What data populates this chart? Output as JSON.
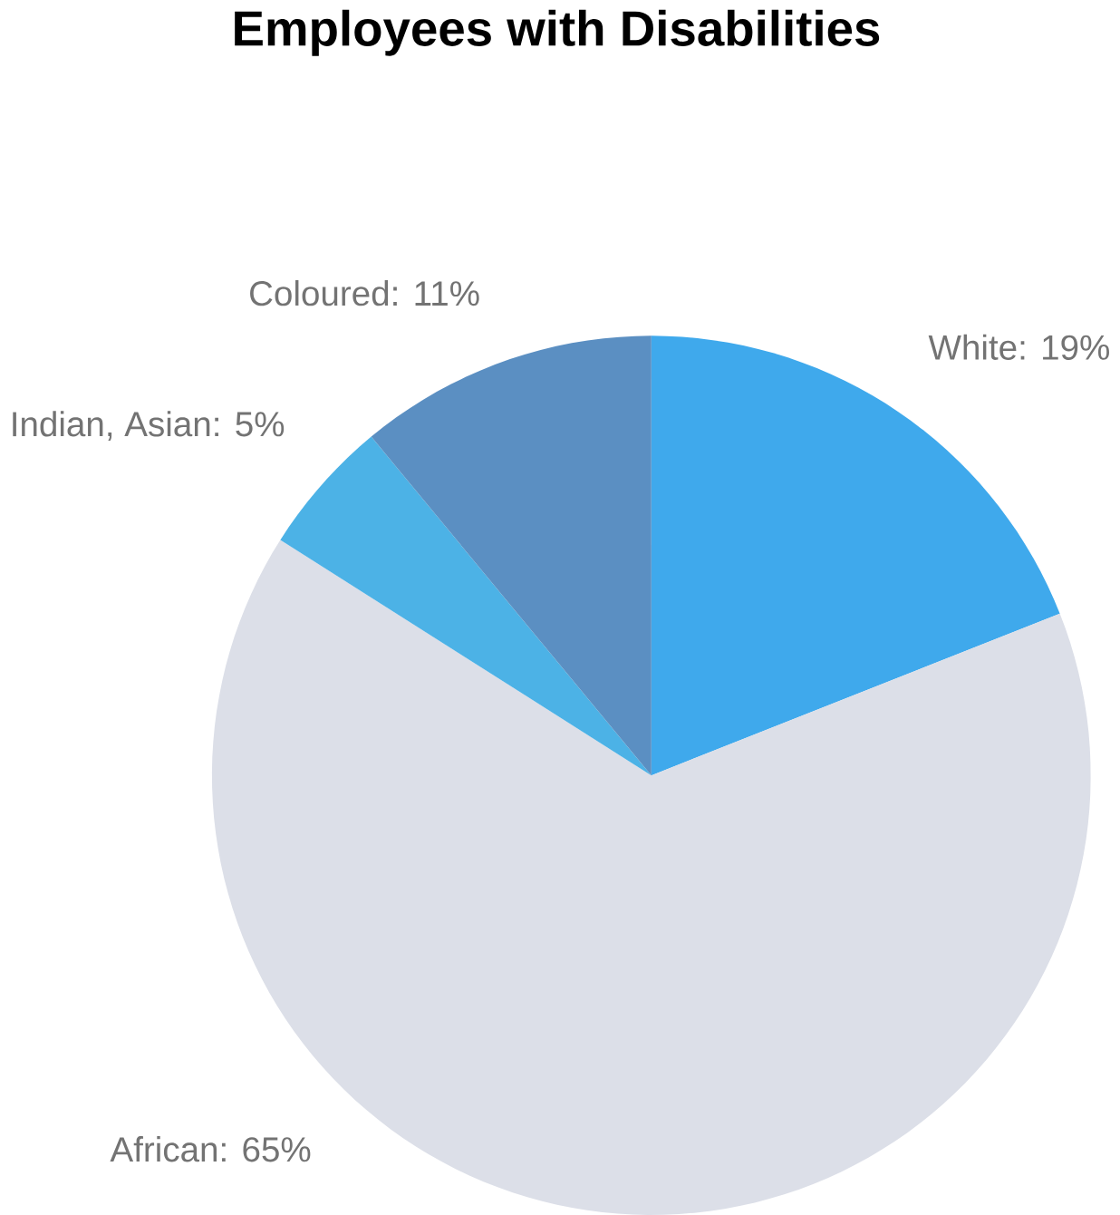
{
  "chart_data": {
    "type": "pie",
    "title": "Employees with Disabilities",
    "categories": [
      "White: 19%",
      "African: 65%",
      "Indian, Asian: 5%",
      "Coloured: 11%"
    ],
    "values": [
      19,
      65,
      5,
      11
    ],
    "colors": [
      "#3fa9ec",
      "#dcdfe8",
      "#4cb2e6",
      "#5b8fc2"
    ]
  }
}
